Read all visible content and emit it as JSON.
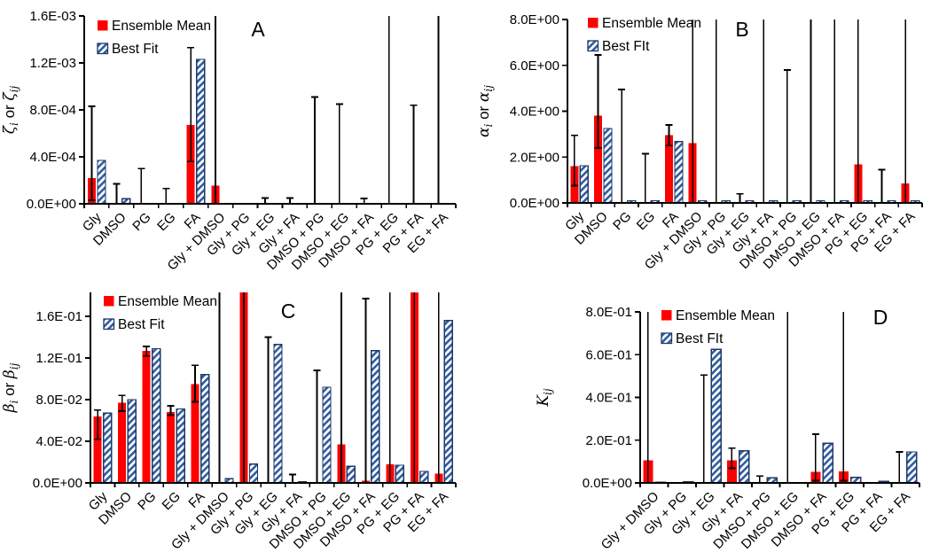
{
  "figure": {
    "background": "#FFFFFF"
  },
  "colors": {
    "axis": "#000000",
    "text": "#000000",
    "error_bar": "#000000",
    "ensemble_mean": "#FF0000",
    "best_fit_stripe": "#2E5BA0",
    "best_fit_border": "#1F3864",
    "bar_background": "#FFFFFF"
  },
  "chart_data": [
    {
      "type": "bar",
      "panel_label": "A",
      "ylabel": "ζi or ζij",
      "ylabel_segments": [
        {
          "t": "ζ",
          "sub": "i",
          "it": true
        },
        {
          "t": " or ",
          "it": false
        },
        {
          "t": "ζ",
          "sub": "ij",
          "it": true
        }
      ],
      "legend": [
        "Ensemble Mean",
        "Best Fit"
      ],
      "legend_position": "top-left",
      "grid": false,
      "ylim": [
        0,
        0.0016
      ],
      "ytick_values": [
        0,
        0.0004,
        0.0008,
        0.0012,
        0.0016
      ],
      "ytick_labels": [
        "0.0E+00",
        "4.0E-04",
        "8.0E-04",
        "1.2E-03",
        "1.6E-03"
      ],
      "categories": [
        "Gly",
        "DMSO",
        "PG",
        "EG",
        "FA",
        "Gly + DMSO",
        "Gly + PG",
        "Gly + EG",
        "Gly + FA",
        "DMSO + PG",
        "DMSO + EG",
        "DMSO + FA",
        "PG + EG",
        "PG + FA",
        "EG + FA"
      ],
      "series": [
        {
          "name": "Ensemble Mean",
          "values": [
            0.00022,
            6e-06,
            2e-06,
            2e-06,
            0.00067,
            0.000155,
            0,
            0,
            0,
            2e-06,
            0,
            0,
            0,
            0,
            0
          ]
        },
        {
          "name": "Best Fit",
          "values": [
            0.00037,
            4.3e-05,
            0,
            0,
            0.00123,
            2e-06,
            0,
            0,
            0,
            0,
            0,
            0,
            0,
            0,
            0
          ]
        }
      ],
      "error_low": [
        3e-05,
        0,
        0,
        0,
        0.00036,
        0,
        0,
        0,
        0,
        0,
        0,
        0,
        0,
        0,
        0
      ],
      "error_high": [
        0.00083,
        0.00017,
        0.0003,
        0.00013,
        0.00133,
        0.002,
        0,
        5e-05,
        5e-05,
        0.00091,
        0.00085,
        4.5e-05,
        0.002,
        0.00084,
        0.002
      ],
      "note": "error_high values above ylim max are clipped at the plot top (no cap drawn)"
    },
    {
      "type": "bar",
      "panel_label": "B",
      "ylabel": "αi or αij",
      "ylabel_segments": [
        {
          "t": "α",
          "sub": "i",
          "it": true
        },
        {
          "t": " or ",
          "it": false
        },
        {
          "t": "α",
          "sub": "ij",
          "it": true
        }
      ],
      "legend": [
        "Ensemble Mean",
        "Best FIt"
      ],
      "legend_position": "top-left",
      "grid": false,
      "ylim": [
        0,
        8.0
      ],
      "ytick_values": [
        0,
        2.0,
        4.0,
        6.0,
        8.0
      ],
      "ytick_labels": [
        "0.0E+00",
        "2.0E+00",
        "4.0E+00",
        "6.0E+00",
        "8.0E+00"
      ],
      "categories": [
        "Gly",
        "DMSO",
        "PG",
        "EG",
        "FA",
        "Gly + DMSO",
        "Gly + PG",
        "Gly + EG",
        "Gly + FA",
        "DMSO + PG",
        "DMSO + EG",
        "DMSO + FA",
        "PG + EG",
        "PG + FA",
        "EG + FA"
      ],
      "series": [
        {
          "name": "Ensemble Mean",
          "values": [
            1.6,
            3.8,
            0.04,
            0.04,
            2.95,
            2.6,
            0,
            0.04,
            0,
            0,
            0,
            0,
            1.68,
            0,
            0.85
          ]
        },
        {
          "name": "Best FIt",
          "values": [
            1.62,
            3.25,
            0.1,
            0.1,
            2.68,
            0.1,
            0.1,
            0.1,
            0.1,
            0.1,
            0.1,
            0.1,
            0.1,
            0.1,
            0.1
          ]
        }
      ],
      "error_low": [
        0.75,
        2.4,
        0,
        0,
        2.5,
        0,
        0,
        0,
        0,
        0,
        0,
        0,
        0,
        0,
        0
      ],
      "error_high": [
        2.95,
        6.45,
        4.95,
        2.15,
        3.4,
        9,
        9,
        0.4,
        9,
        5.8,
        9,
        9,
        9,
        1.45,
        9
      ],
      "note": "error_high values above ylim max are clipped at the plot top (no cap drawn)"
    },
    {
      "type": "bar",
      "panel_label": "C",
      "ylabel": "βi or βij",
      "ylabel_segments": [
        {
          "t": "β",
          "sub": "i",
          "it": true
        },
        {
          "t": " or ",
          "it": false
        },
        {
          "t": "β",
          "sub": "ij",
          "it": true
        }
      ],
      "legend": [
        "Ensemble Mean",
        "Best Fit"
      ],
      "legend_position": "top-left",
      "grid": false,
      "ylim": [
        0,
        0.183
      ],
      "ytick_values": [
        0,
        0.04,
        0.08,
        0.12,
        0.16
      ],
      "ytick_labels": [
        "0.0E+00",
        "4.0E-02",
        "8.0E-02",
        "1.2E-01",
        "1.6E-01"
      ],
      "categories": [
        "Gly",
        "DMSO",
        "PG",
        "EG",
        "FA",
        "Gly + DMSO",
        "Gly + PG",
        "Gly + EG",
        "Gly + FA",
        "DMSO + PG",
        "DMSO + EG",
        "DMSO + FA",
        "PG + EG",
        "PG + FA",
        "EG + FA"
      ],
      "series": [
        {
          "name": "Ensemble Mean",
          "values": [
            0.064,
            0.077,
            0.127,
            0.068,
            0.095,
            0,
            0.2,
            0,
            0,
            0,
            0.037,
            0.002,
            0.018,
            0.2,
            0.009
          ]
        },
        {
          "name": "Best Fit",
          "values": [
            0.067,
            0.08,
            0.129,
            0.071,
            0.104,
            0.004,
            0.018,
            0.133,
            0.001,
            0.092,
            0.016,
            0.127,
            0.017,
            0.011,
            0.156
          ]
        }
      ],
      "error_low": [
        0.042,
        0.069,
        0.122,
        0.065,
        0.078,
        0,
        0,
        0,
        0,
        0,
        0,
        0,
        0,
        0,
        0
      ],
      "error_high": [
        0.07,
        0.084,
        0.131,
        0.074,
        0.113,
        0.2,
        0.2,
        0.14,
        0.008,
        0.108,
        0.2,
        0.177,
        0.2,
        0.2,
        0.2
      ],
      "note": "mean values of 0.2 and error_high of 0.2 are clipped at the plot top"
    },
    {
      "type": "bar",
      "panel_label": "D",
      "ylabel": "Kij",
      "ylabel_segments": [
        {
          "t": "K",
          "sub": "ij",
          "it": true
        }
      ],
      "legend": [
        "Ensemble Mean",
        "Best FIt"
      ],
      "legend_position": "top-left",
      "grid": false,
      "ylim": [
        0,
        0.8
      ],
      "ytick_values": [
        0,
        0.2,
        0.4,
        0.6,
        0.8
      ],
      "ytick_labels": [
        "0.0E+00",
        "2.0E-01",
        "4.0E-01",
        "6.0E-01",
        "8.0E-01"
      ],
      "categories": [
        "Gly + DMSO",
        "Gly + PG",
        "Gly + EG",
        "Gly + FA",
        "DMSO + PG",
        "DMSO + EG",
        "DMSO + FA",
        "PG + EG",
        "PG + FA",
        "EG + FA"
      ],
      "series": [
        {
          "name": "Ensemble Mean",
          "values": [
            0.105,
            0,
            0,
            0.105,
            0.002,
            0,
            0.052,
            0.053,
            0,
            0.002
          ]
        },
        {
          "name": "Best FIt",
          "values": [
            0.003,
            0.006,
            0.625,
            0.15,
            0.024,
            0.002,
            0.185,
            0.026,
            0.007,
            0.145
          ]
        }
      ],
      "error_low": [
        0,
        0,
        0,
        0.068,
        0,
        0,
        0.01,
        0.01,
        0,
        0
      ],
      "error_high": [
        0.9,
        0,
        0.505,
        0.163,
        0.032,
        0.9,
        0.228,
        0.9,
        0,
        0.145
      ],
      "note": "error_high values above ylim max are clipped at the plot top (no cap drawn)"
    }
  ]
}
